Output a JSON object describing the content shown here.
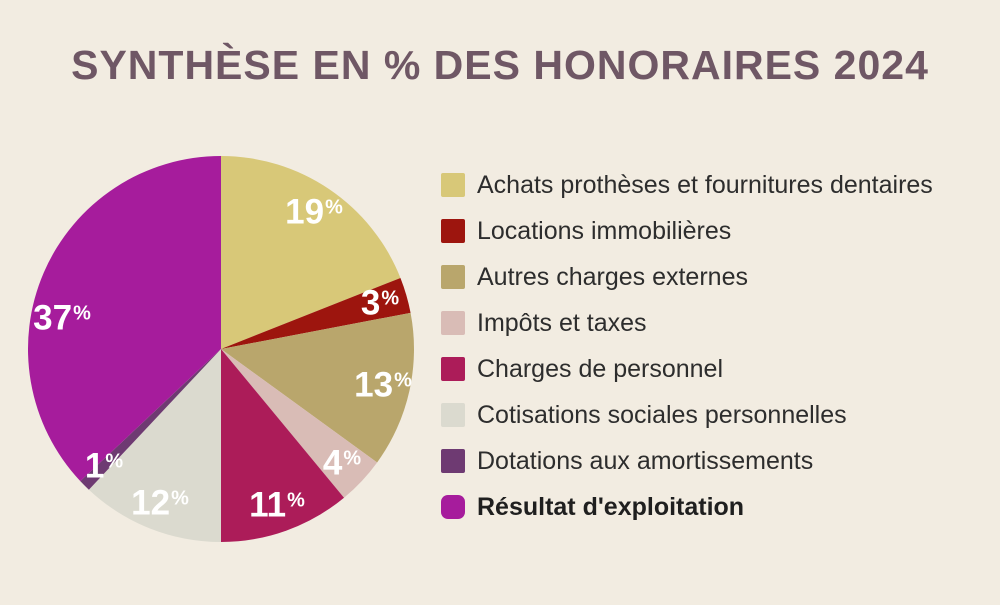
{
  "page": {
    "background": "#f2ece1"
  },
  "title": {
    "text": "SYNTHÈSE EN % DES HONORAIRES 2024",
    "color": "#6f5765"
  },
  "chart_data": {
    "type": "pie",
    "title": "SYNTHÈSE EN % DES HONORAIRES 2024",
    "value_suffix": "%",
    "legend_position": "right",
    "start_angle": 0,
    "label_radius_frac": 0.86,
    "slice_label_color": "#ffffff",
    "slices": [
      {
        "label": "Achats prothèses et fournitures dentaires",
        "value": 19,
        "color": "#d8c878"
      },
      {
        "label": "Locations immobilières",
        "value": 3,
        "color": "#9d150e"
      },
      {
        "label": "Autres charges externes",
        "value": 13,
        "color": "#b9a66c"
      },
      {
        "label": "Impôts et taxes",
        "value": 4,
        "color": "#d9bcb6"
      },
      {
        "label": "Charges de personnel",
        "value": 11,
        "color": "#ac1c59"
      },
      {
        "label": "Cotisations sociales personnelles",
        "value": 12,
        "color": "#dbdacf"
      },
      {
        "label": "Dotations aux amortissements",
        "value": 1,
        "color": "#6e3a72"
      },
      {
        "label": "Résultat d'exploitation",
        "value": 37,
        "color": "#a61c9c",
        "emphasis": true,
        "label_angle": 281,
        "label_radius_frac": 0.84
      }
    ]
  }
}
